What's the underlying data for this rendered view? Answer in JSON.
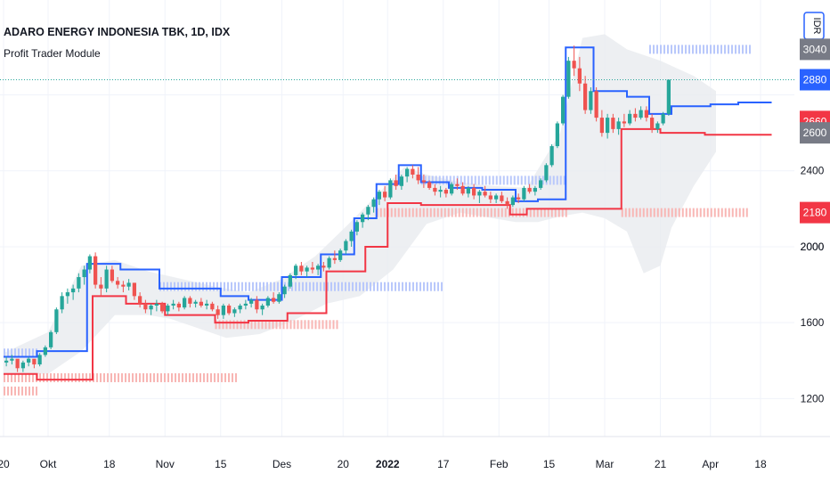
{
  "header": {
    "title": "ADARO ENERGY INDONESIA TBK, 1D, IDX",
    "indicator": "Profit Trader Module"
  },
  "currency_label": "IDR",
  "colors": {
    "up": "#26a69a",
    "down": "#ef5350",
    "upper_line": "#2962ff",
    "lower_line": "#f23645",
    "cloud": "#e9ebef",
    "grid": "#f0f3fa",
    "dotted_price": "#26a69a",
    "upper_dots": "#b9c8fb",
    "lower_dots": "#f8b6b4",
    "badge_gray": "#787b86"
  },
  "price_badges": [
    {
      "value": 3040,
      "label": "3040",
      "color": "#787b86"
    },
    {
      "value": 2880,
      "label": "2880",
      "color": "#2962ff"
    },
    {
      "value": 2660,
      "label": "2660",
      "color": "#f23645"
    },
    {
      "value": 2600,
      "label": "2600",
      "color": "#787b86"
    },
    {
      "value": 2180,
      "label": "2180",
      "color": "#f23645"
    }
  ],
  "chart_data": {
    "type": "candlestick",
    "title": "ADARO ENERGY INDONESIA TBK, 1D, IDX",
    "ylim": [
      1000,
      3300
    ],
    "y_ticks": [
      1200,
      1600,
      2000,
      2400
    ],
    "x_labels": [
      {
        "label": "20",
        "bar": 0,
        "bold": false
      },
      {
        "label": "Okt",
        "bar": 8,
        "bold": false
      },
      {
        "label": "18",
        "bar": 19,
        "bold": false
      },
      {
        "label": "Nov",
        "bar": 29,
        "bold": false
      },
      {
        "label": "15",
        "bar": 39,
        "bold": false
      },
      {
        "label": "Des",
        "bar": 50,
        "bold": false
      },
      {
        "label": "20",
        "bar": 61,
        "bold": false
      },
      {
        "label": "2022",
        "bar": 69,
        "bold": true
      },
      {
        "label": "17",
        "bar": 79,
        "bold": false
      },
      {
        "label": "Feb",
        "bar": 89,
        "bold": false
      },
      {
        "label": "15",
        "bar": 98,
        "bold": false
      },
      {
        "label": "Mar",
        "bar": 108,
        "bold": false
      },
      {
        "label": "21",
        "bar": 118,
        "bold": false
      },
      {
        "label": "Apr",
        "bar": 127,
        "bold": false
      },
      {
        "label": "18",
        "bar": 136,
        "bold": false
      }
    ],
    "last_close_line": 2880,
    "candles": [
      [
        1390,
        1420,
        1370,
        1400
      ],
      [
        1400,
        1430,
        1380,
        1410
      ],
      [
        1410,
        1400,
        1340,
        1360
      ],
      [
        1360,
        1400,
        1340,
        1390
      ],
      [
        1390,
        1420,
        1370,
        1410
      ],
      [
        1410,
        1400,
        1360,
        1380
      ],
      [
        1380,
        1440,
        1370,
        1430
      ],
      [
        1430,
        1480,
        1420,
        1470
      ],
      [
        1470,
        1560,
        1460,
        1550
      ],
      [
        1550,
        1680,
        1540,
        1670
      ],
      [
        1670,
        1760,
        1650,
        1740
      ],
      [
        1740,
        1780,
        1700,
        1760
      ],
      [
        1760,
        1800,
        1720,
        1780
      ],
      [
        1780,
        1860,
        1760,
        1840
      ],
      [
        1840,
        1900,
        1800,
        1880
      ],
      [
        1880,
        1960,
        1860,
        1950
      ],
      [
        1950,
        1970,
        1780,
        1800
      ],
      [
        1800,
        1840,
        1740,
        1780
      ],
      [
        1780,
        1900,
        1760,
        1880
      ],
      [
        1880,
        1900,
        1810,
        1820
      ],
      [
        1820,
        1840,
        1780,
        1800
      ],
      [
        1800,
        1820,
        1760,
        1790
      ],
      [
        1790,
        1830,
        1770,
        1810
      ],
      [
        1810,
        1810,
        1720,
        1740
      ],
      [
        1740,
        1760,
        1680,
        1700
      ],
      [
        1700,
        1720,
        1650,
        1670
      ],
      [
        1670,
        1700,
        1640,
        1690
      ],
      [
        1690,
        1720,
        1660,
        1700
      ],
      [
        1700,
        1710,
        1650,
        1660
      ],
      [
        1660,
        1700,
        1640,
        1690
      ],
      [
        1690,
        1720,
        1670,
        1700
      ],
      [
        1700,
        1710,
        1660,
        1680
      ],
      [
        1680,
        1740,
        1670,
        1730
      ],
      [
        1730,
        1740,
        1680,
        1700
      ],
      [
        1700,
        1720,
        1680,
        1710
      ],
      [
        1710,
        1730,
        1680,
        1690
      ],
      [
        1690,
        1720,
        1670,
        1700
      ],
      [
        1700,
        1710,
        1660,
        1670
      ],
      [
        1670,
        1690,
        1620,
        1640
      ],
      [
        1640,
        1700,
        1620,
        1690
      ],
      [
        1690,
        1700,
        1640,
        1650
      ],
      [
        1650,
        1680,
        1630,
        1670
      ],
      [
        1670,
        1700,
        1650,
        1690
      ],
      [
        1690,
        1720,
        1670,
        1700
      ],
      [
        1700,
        1730,
        1680,
        1720
      ],
      [
        1720,
        1740,
        1650,
        1670
      ],
      [
        1670,
        1700,
        1640,
        1690
      ],
      [
        1690,
        1740,
        1680,
        1730
      ],
      [
        1730,
        1760,
        1700,
        1710
      ],
      [
        1710,
        1760,
        1700,
        1750
      ],
      [
        1750,
        1800,
        1730,
        1790
      ],
      [
        1790,
        1860,
        1780,
        1850
      ],
      [
        1850,
        1910,
        1830,
        1900
      ],
      [
        1900,
        1920,
        1850,
        1870
      ],
      [
        1870,
        1900,
        1840,
        1890
      ],
      [
        1890,
        1920,
        1860,
        1880
      ],
      [
        1880,
        1910,
        1850,
        1900
      ],
      [
        1900,
        1920,
        1870,
        1890
      ],
      [
        1890,
        1950,
        1880,
        1940
      ],
      [
        1940,
        1980,
        1910,
        1930
      ],
      [
        1930,
        1990,
        1920,
        1980
      ],
      [
        1980,
        2040,
        1960,
        2030
      ],
      [
        2030,
        2090,
        2000,
        2080
      ],
      [
        2080,
        2140,
        2060,
        2130
      ],
      [
        2130,
        2180,
        2100,
        2170
      ],
      [
        2170,
        2220,
        2140,
        2210
      ],
      [
        2210,
        2260,
        2180,
        2250
      ],
      [
        2250,
        2300,
        2220,
        2290
      ],
      [
        2290,
        2320,
        2240,
        2260
      ],
      [
        2260,
        2360,
        2250,
        2350
      ],
      [
        2350,
        2380,
        2300,
        2320
      ],
      [
        2320,
        2380,
        2300,
        2370
      ],
      [
        2370,
        2420,
        2340,
        2410
      ],
      [
        2410,
        2430,
        2360,
        2380
      ],
      [
        2380,
        2420,
        2330,
        2350
      ],
      [
        2350,
        2380,
        2310,
        2340
      ],
      [
        2340,
        2350,
        2300,
        2310
      ],
      [
        2310,
        2330,
        2270,
        2290
      ],
      [
        2290,
        2320,
        2260,
        2300
      ],
      [
        2300,
        2310,
        2260,
        2280
      ],
      [
        2280,
        2340,
        2270,
        2330
      ],
      [
        2330,
        2360,
        2300,
        2320
      ],
      [
        2320,
        2340,
        2270,
        2280
      ],
      [
        2280,
        2320,
        2260,
        2310
      ],
      [
        2310,
        2330,
        2250,
        2270
      ],
      [
        2270,
        2300,
        2230,
        2290
      ],
      [
        2290,
        2320,
        2260,
        2270
      ],
      [
        2270,
        2290,
        2230,
        2250
      ],
      [
        2250,
        2280,
        2230,
        2270
      ],
      [
        2270,
        2290,
        2230,
        2240
      ],
      [
        2240,
        2260,
        2200,
        2220
      ],
      [
        2220,
        2270,
        2210,
        2260
      ],
      [
        2260,
        2280,
        2230,
        2250
      ],
      [
        2250,
        2320,
        2240,
        2310
      ],
      [
        2310,
        2330,
        2280,
        2290
      ],
      [
        2290,
        2320,
        2270,
        2310
      ],
      [
        2310,
        2360,
        2300,
        2350
      ],
      [
        2350,
        2440,
        2340,
        2430
      ],
      [
        2430,
        2540,
        2420,
        2530
      ],
      [
        2530,
        2660,
        2520,
        2650
      ],
      [
        2650,
        2800,
        2640,
        2790
      ],
      [
        2790,
        3000,
        2780,
        2980
      ],
      [
        2980,
        3060,
        2900,
        2940
      ],
      [
        2940,
        3000,
        2820,
        2860
      ],
      [
        2860,
        2900,
        2700,
        2720
      ],
      [
        2720,
        2840,
        2700,
        2820
      ],
      [
        2820,
        2840,
        2660,
        2680
      ],
      [
        2680,
        2720,
        2580,
        2600
      ],
      [
        2600,
        2700,
        2570,
        2680
      ],
      [
        2680,
        2700,
        2600,
        2620
      ],
      [
        2620,
        2680,
        2590,
        2660
      ],
      [
        2660,
        2700,
        2630,
        2650
      ],
      [
        2650,
        2720,
        2640,
        2700
      ],
      [
        2700,
        2730,
        2660,
        2680
      ],
      [
        2680,
        2740,
        2670,
        2720
      ],
      [
        2720,
        2740,
        2660,
        2680
      ],
      [
        2680,
        2700,
        2600,
        2620
      ],
      [
        2620,
        2660,
        2600,
        2650
      ],
      [
        2650,
        2710,
        2640,
        2700
      ],
      [
        2700,
        2880,
        2690,
        2880
      ]
    ],
    "upper_line": [
      [
        0,
        1420
      ],
      [
        6,
        1420
      ],
      [
        6,
        1450
      ],
      [
        15,
        1450
      ],
      [
        15,
        1910
      ],
      [
        21,
        1910
      ],
      [
        21,
        1880
      ],
      [
        28,
        1880
      ],
      [
        28,
        1780
      ],
      [
        39,
        1780
      ],
      [
        39,
        1740
      ],
      [
        44,
        1740
      ],
      [
        44,
        1720
      ],
      [
        50,
        1720
      ],
      [
        50,
        1840
      ],
      [
        57,
        1840
      ],
      [
        57,
        1960
      ],
      [
        63,
        1960
      ],
      [
        63,
        2150
      ],
      [
        67,
        2150
      ],
      [
        67,
        2330
      ],
      [
        71,
        2330
      ],
      [
        71,
        2430
      ],
      [
        75,
        2430
      ],
      [
        75,
        2340
      ],
      [
        80,
        2340
      ],
      [
        80,
        2310
      ],
      [
        86,
        2310
      ],
      [
        86,
        2300
      ],
      [
        92,
        2300
      ],
      [
        92,
        2240
      ],
      [
        96,
        2240
      ],
      [
        96,
        2250
      ],
      [
        101,
        2250
      ],
      [
        101,
        3050
      ],
      [
        106,
        3050
      ],
      [
        106,
        2820
      ],
      [
        112,
        2820
      ],
      [
        112,
        2790
      ],
      [
        116,
        2790
      ],
      [
        116,
        2700
      ],
      [
        120,
        2700
      ],
      [
        120,
        2740
      ],
      [
        127,
        2740
      ],
      [
        127,
        2750
      ],
      [
        132,
        2750
      ],
      [
        132,
        2760
      ],
      [
        138,
        2760
      ]
    ],
    "lower_line": [
      [
        0,
        1330
      ],
      [
        6,
        1330
      ],
      [
        6,
        1300
      ],
      [
        12,
        1300
      ],
      [
        12,
        1300
      ],
      [
        16,
        1300
      ],
      [
        16,
        1740
      ],
      [
        22,
        1740
      ],
      [
        22,
        1700
      ],
      [
        29,
        1700
      ],
      [
        29,
        1640
      ],
      [
        38,
        1640
      ],
      [
        38,
        1600
      ],
      [
        44,
        1600
      ],
      [
        44,
        1610
      ],
      [
        51,
        1610
      ],
      [
        51,
        1650
      ],
      [
        58,
        1650
      ],
      [
        58,
        1870
      ],
      [
        65,
        1870
      ],
      [
        65,
        2000
      ],
      [
        69,
        2000
      ],
      [
        69,
        2230
      ],
      [
        75,
        2230
      ],
      [
        75,
        2220
      ],
      [
        82,
        2220
      ],
      [
        82,
        2220
      ],
      [
        91,
        2220
      ],
      [
        91,
        2170
      ],
      [
        94,
        2170
      ],
      [
        94,
        2200
      ],
      [
        101,
        2200
      ],
      [
        101,
        2200
      ],
      [
        109,
        2200
      ],
      [
        109,
        2200
      ],
      [
        111,
        2200
      ],
      [
        111,
        2620
      ],
      [
        118,
        2620
      ],
      [
        118,
        2600
      ],
      [
        126,
        2600
      ],
      [
        126,
        2590
      ],
      [
        138,
        2590
      ]
    ],
    "cloud_upper": [
      [
        0,
        1440
      ],
      [
        8,
        1550
      ],
      [
        14,
        1900
      ],
      [
        20,
        1930
      ],
      [
        26,
        1870
      ],
      [
        32,
        1830
      ],
      [
        38,
        1790
      ],
      [
        44,
        1760
      ],
      [
        50,
        1830
      ],
      [
        56,
        1950
      ],
      [
        62,
        2120
      ],
      [
        68,
        2300
      ],
      [
        72,
        2420
      ],
      [
        76,
        2380
      ],
      [
        82,
        2340
      ],
      [
        88,
        2320
      ],
      [
        94,
        2310
      ],
      [
        100,
        2600
      ],
      [
        104,
        3100
      ],
      [
        108,
        3120
      ],
      [
        112,
        3040
      ],
      [
        118,
        2980
      ],
      [
        124,
        2900
      ],
      [
        128,
        2820
      ]
    ],
    "cloud_lower": [
      [
        128,
        2500
      ],
      [
        124,
        2320
      ],
      [
        120,
        2100
      ],
      [
        118,
        1900
      ],
      [
        115,
        1860
      ],
      [
        112,
        2080
      ],
      [
        108,
        2150
      ],
      [
        104,
        2180
      ],
      [
        100,
        2160
      ],
      [
        96,
        2130
      ],
      [
        92,
        2130
      ],
      [
        88,
        2150
      ],
      [
        82,
        2180
      ],
      [
        76,
        2120
      ],
      [
        70,
        1880
      ],
      [
        64,
        1740
      ],
      [
        58,
        1700
      ],
      [
        52,
        1610
      ],
      [
        46,
        1540
      ],
      [
        40,
        1520
      ],
      [
        34,
        1580
      ],
      [
        30,
        1620
      ],
      [
        26,
        1640
      ],
      [
        20,
        1640
      ],
      [
        14,
        1450
      ],
      [
        8,
        1330
      ],
      [
        0,
        1330
      ]
    ]
  }
}
